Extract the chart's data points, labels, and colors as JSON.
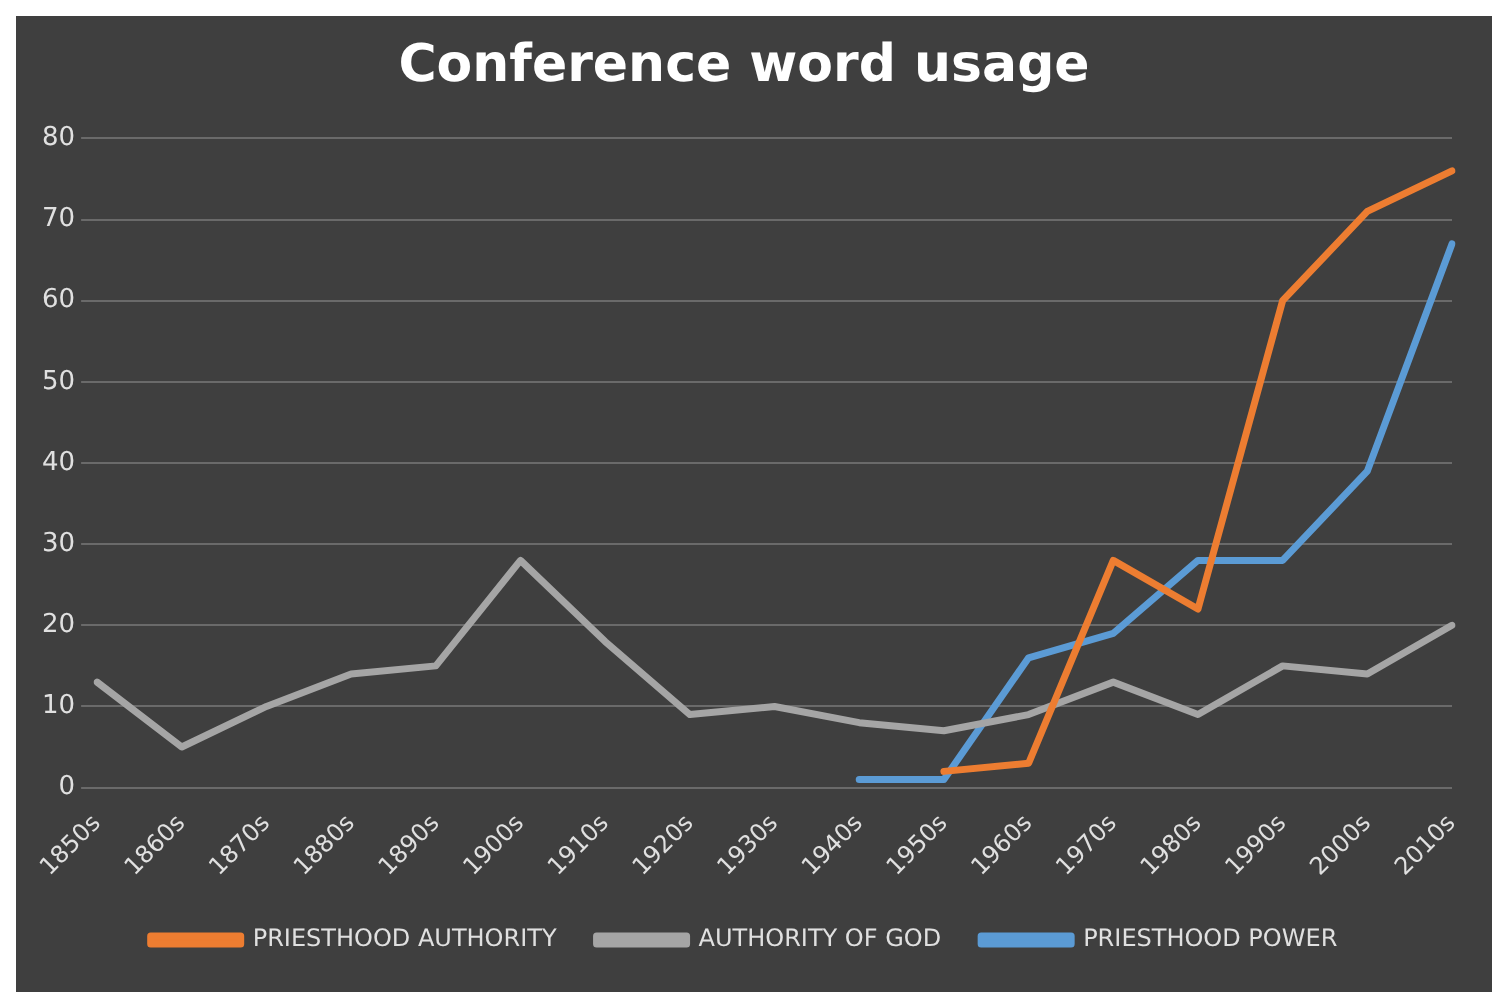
{
  "chart_data": {
    "type": "line",
    "title": "Conference word usage",
    "categories": [
      "1850s",
      "1860s",
      "1870s",
      "1880s",
      "1890s",
      "1900s",
      "1910s",
      "1920s",
      "1930s",
      "1940s",
      "1950s",
      "1960s",
      "1970s",
      "1980s",
      "1990s",
      "2000s",
      "2010s"
    ],
    "series": [
      {
        "name": "PRIESTHOOD AUTHORITY",
        "color": "#ed7d31",
        "values": [
          null,
          null,
          null,
          null,
          null,
          null,
          null,
          null,
          null,
          null,
          2,
          3,
          28,
          22,
          60,
          71,
          76
        ]
      },
      {
        "name": "AUTHORITY OF GOD",
        "color": "#a5a5a5",
        "values": [
          13,
          5,
          10,
          14,
          15,
          28,
          18,
          9,
          10,
          8,
          7,
          9,
          13,
          9,
          15,
          14,
          20
        ]
      },
      {
        "name": "PRIESTHOOD POWER",
        "color": "#5b9bd5",
        "values": [
          null,
          null,
          null,
          null,
          null,
          null,
          null,
          null,
          null,
          1,
          1,
          16,
          19,
          28,
          28,
          39,
          67
        ]
      }
    ],
    "ylim": [
      0,
      80
    ],
    "yticks": [
      0,
      10,
      20,
      30,
      40,
      50,
      60,
      70,
      80
    ],
    "grid": "y",
    "legend": "bottom",
    "marker": "none",
    "line_style": "solid"
  }
}
